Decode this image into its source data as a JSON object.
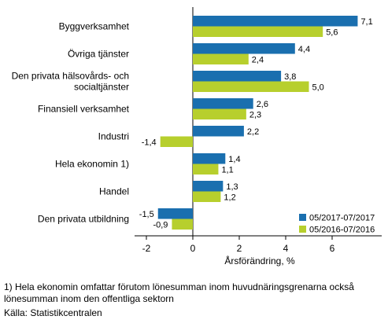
{
  "chart_data": {
    "type": "bar",
    "orientation": "horizontal",
    "categories": [
      [
        "Byggverksamhet"
      ],
      [
        "Övriga tjänster"
      ],
      [
        "Den privata hälsovårds- och",
        "socialtjänster"
      ],
      [
        "Finansiell verksamhet"
      ],
      [
        "Industri"
      ],
      [
        "Hela ekonomin 1)"
      ],
      [
        "Handel"
      ],
      [
        "Den privata utbildning"
      ]
    ],
    "series": [
      {
        "name": "05/2017-07/2017",
        "color": "#1a6faf",
        "values": [
          7.1,
          4.4,
          3.8,
          2.6,
          2.2,
          1.4,
          1.3,
          -1.5
        ],
        "labels": [
          "7,1",
          "4,4",
          "3,8",
          "2,6",
          "2,2",
          "1,4",
          "1,3",
          "-1,5"
        ]
      },
      {
        "name": "05/2016-07/2016",
        "color": "#b7cf2d",
        "values": [
          5.6,
          2.4,
          5.0,
          2.3,
          -1.4,
          1.1,
          1.2,
          -0.9
        ],
        "labels": [
          "5,6",
          "2,4",
          "5,0",
          "2,3",
          "-1,4",
          "1,1",
          "1,2",
          "-0,9"
        ]
      }
    ],
    "xlim": [
      -2.5,
      8.2
    ],
    "xticks": [
      -2,
      0,
      2,
      4,
      6
    ],
    "xtick_labels": [
      "-2",
      "0",
      "2",
      "4",
      "6"
    ],
    "xlabel": "Årsförändring, %",
    "ylabel": "",
    "grid": false,
    "legend_position": "bottom-right"
  },
  "footnote": "1) Hela ekonomin omfattar förutom lönesumman inom huvudnäringsgrenarna också lönesumman inom den offentliga sektorn",
  "source": "Källa: Statistikcentralen"
}
